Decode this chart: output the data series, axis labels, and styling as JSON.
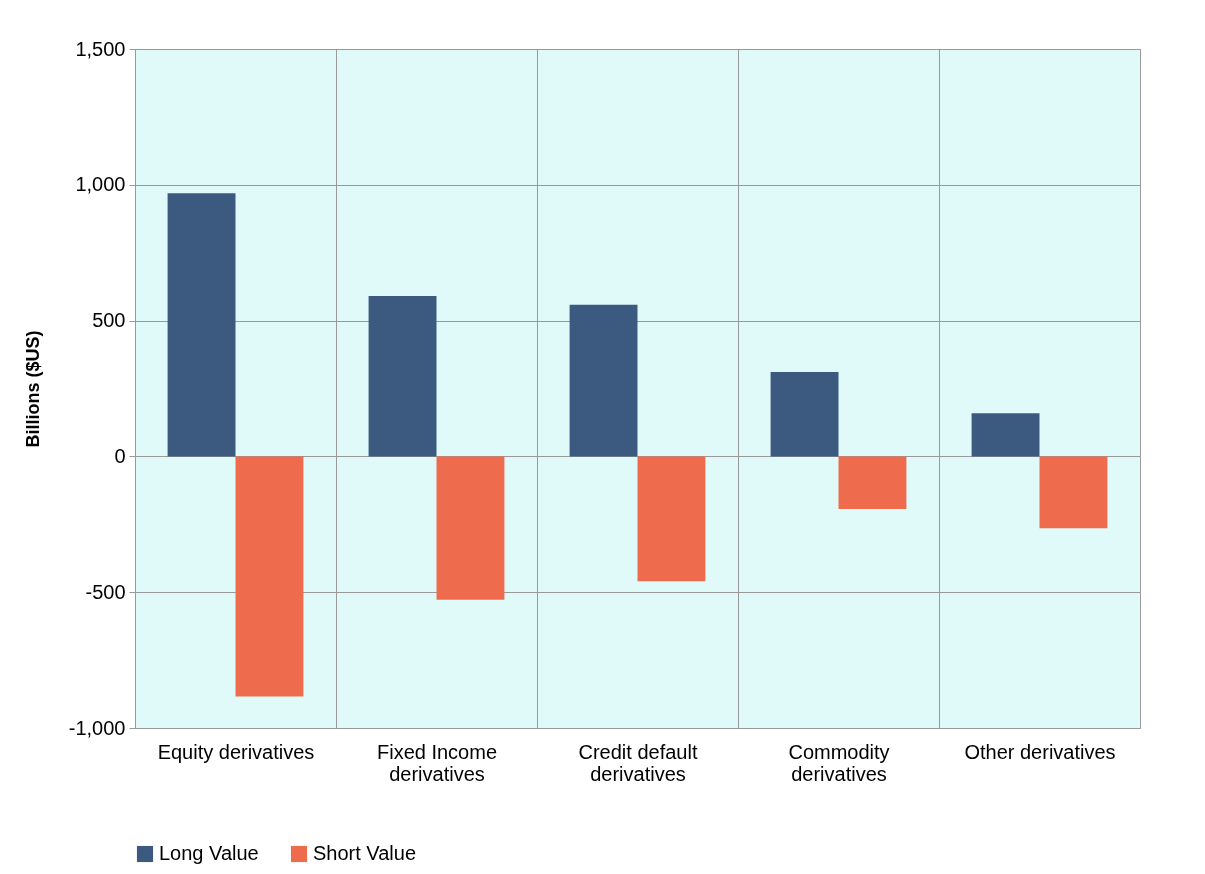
{
  "chart_data": {
    "type": "bar",
    "ylabel": "Billions ($US)",
    "categories": [
      "Equity derivatives",
      "Fixed Income derivatives",
      "Credit default derivatives",
      "Commodity derivatives",
      "Other derivatives"
    ],
    "series": [
      {
        "name": "Long Value",
        "color": "#3c5a80",
        "values": [
          969,
          591,
          558,
          311,
          159
        ]
      },
      {
        "name": "Short Value",
        "color": "#ee6c4d",
        "values": [
          -884,
          -528,
          -460,
          -194,
          -265
        ]
      }
    ],
    "ylim": [
      -1000,
      1500
    ],
    "yticks": [
      {
        "value": -1000,
        "label": "-1,000"
      },
      {
        "value": -500,
        "label": "-500"
      },
      {
        "value": 0,
        "label": "0"
      },
      {
        "value": 500,
        "label": "500"
      },
      {
        "value": 1000,
        "label": "1,000"
      },
      {
        "value": 1500,
        "label": "1,500"
      }
    ],
    "grid": true,
    "legend": "bottom"
  }
}
